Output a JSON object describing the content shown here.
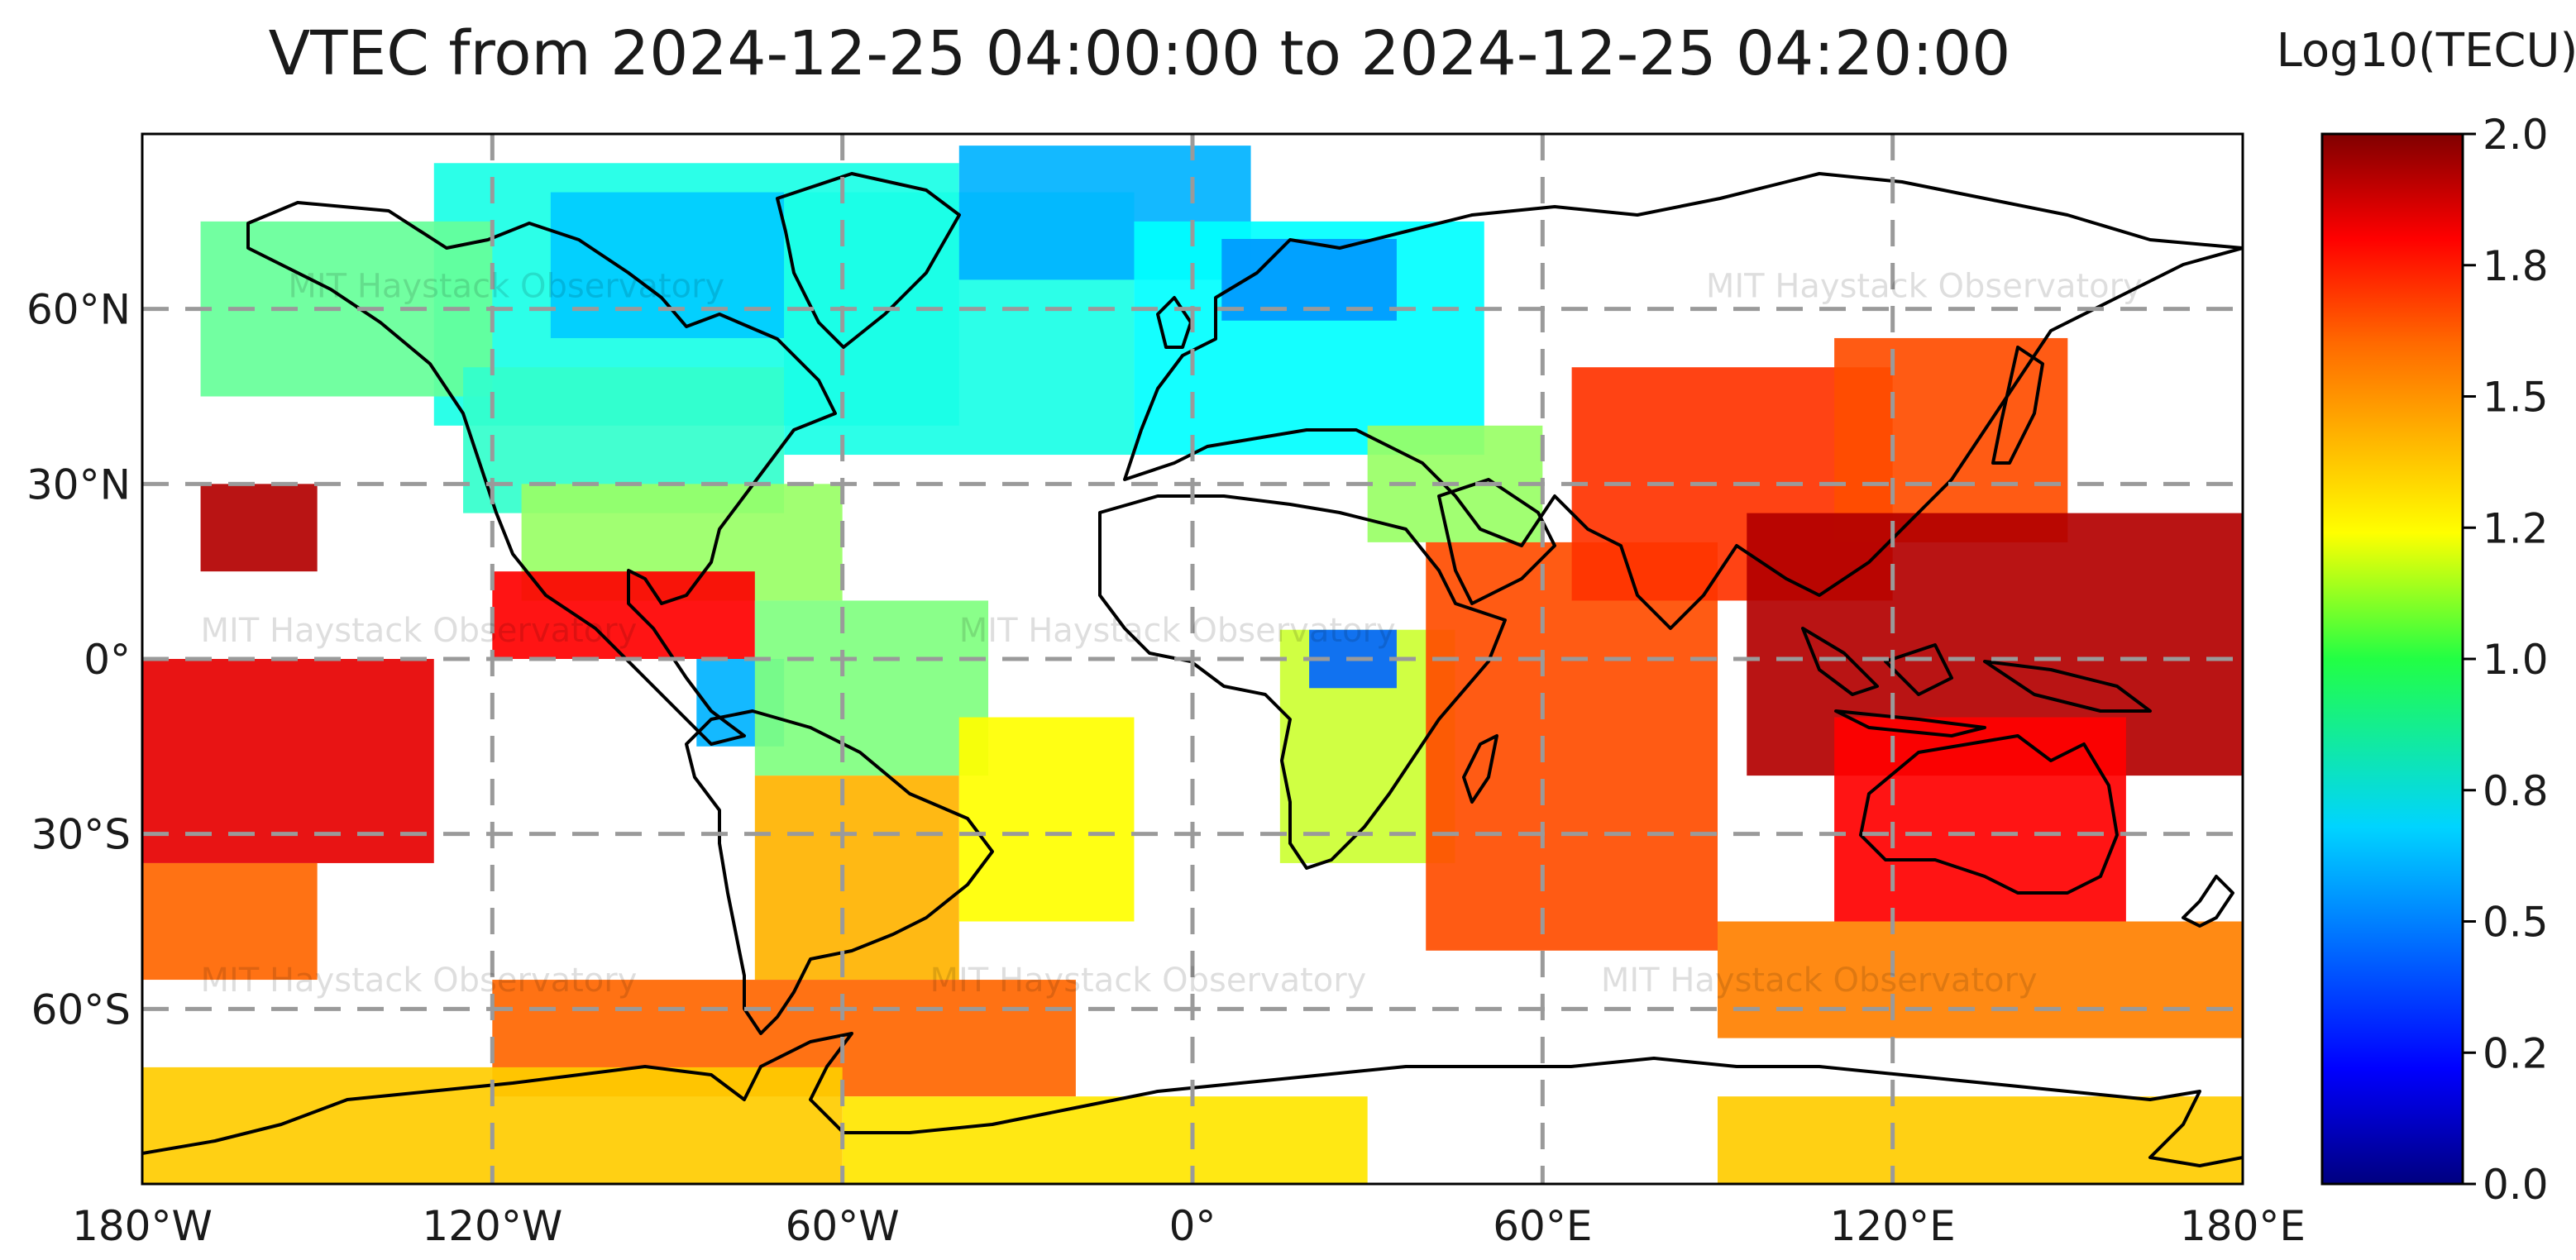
{
  "title": "VTEC from 2024-12-25 04:00:00 to 2024-12-25 04:20:00",
  "colorbar": {
    "label": "Log10(TECU)",
    "min": 0.0,
    "max": 2.0,
    "ticks": [
      {
        "value": 0.0,
        "label": "0.0"
      },
      {
        "value": 0.25,
        "label": "0.2"
      },
      {
        "value": 0.5,
        "label": "0.5"
      },
      {
        "value": 0.75,
        "label": "0.8"
      },
      {
        "value": 1.0,
        "label": "1.0"
      },
      {
        "value": 1.25,
        "label": "1.2"
      },
      {
        "value": 1.5,
        "label": "1.5"
      },
      {
        "value": 1.75,
        "label": "1.8"
      },
      {
        "value": 2.0,
        "label": "2.0"
      }
    ],
    "colormap": "jet",
    "colors": [
      "#000080",
      "#0000ff",
      "#0080ff",
      "#00ffff",
      "#80ff80",
      "#ffff00",
      "#ff8000",
      "#ff0000",
      "#800000"
    ]
  },
  "map": {
    "projection": "equirectangular",
    "lon_range": [
      -180,
      180
    ],
    "lat_range": [
      -90,
      90
    ],
    "gridlines": "dashed",
    "lon_ticks": [
      {
        "value": -180,
        "label": "180°W"
      },
      {
        "value": -120,
        "label": "120°W"
      },
      {
        "value": -60,
        "label": "60°W"
      },
      {
        "value": 0,
        "label": "0°"
      },
      {
        "value": 60,
        "label": "60°E"
      },
      {
        "value": 120,
        "label": "120°E"
      },
      {
        "value": 180,
        "label": "180°E"
      }
    ],
    "lat_ticks": [
      {
        "value": 60,
        "label": "60°N"
      },
      {
        "value": 30,
        "label": "30°N"
      },
      {
        "value": 0,
        "label": "0°"
      },
      {
        "value": -30,
        "label": "30°S"
      },
      {
        "value": -60,
        "label": "60°S"
      }
    ],
    "watermark": "MIT Haystack Observatory",
    "watermarks": [
      {
        "lon": -155,
        "lat": 62
      },
      {
        "lon": 88,
        "lat": 62
      },
      {
        "lon": -170,
        "lat": 3
      },
      {
        "lon": -40,
        "lat": 3
      },
      {
        "lon": -170,
        "lat": -57
      },
      {
        "lon": -45,
        "lat": -57
      },
      {
        "lon": 70,
        "lat": -57
      }
    ],
    "tec_regions": [
      {
        "name": "north-america-arctic",
        "lon": [
          -130,
          -40
        ],
        "lat": [
          40,
          85
        ],
        "value": 0.8
      },
      {
        "name": "canada-high-lat",
        "lon": [
          -110,
          -70
        ],
        "lat": [
          55,
          80
        ],
        "value": 0.65
      },
      {
        "name": "alaska-west-canada",
        "lon": [
          -170,
          -120
        ],
        "lat": [
          45,
          75
        ],
        "value": 0.95
      },
      {
        "name": "united-states",
        "lon": [
          -125,
          -70
        ],
        "lat": [
          25,
          50
        ],
        "value": 0.85
      },
      {
        "name": "north-atlantic",
        "lon": [
          -70,
          -10
        ],
        "lat": [
          35,
          80
        ],
        "value": 0.8
      },
      {
        "name": "greenland-sea",
        "lon": [
          -40,
          10
        ],
        "lat": [
          65,
          88
        ],
        "value": 0.6
      },
      {
        "name": "europe",
        "lon": [
          -10,
          50
        ],
        "lat": [
          35,
          75
        ],
        "value": 0.75
      },
      {
        "name": "scandinavia",
        "lon": [
          5,
          35
        ],
        "lat": [
          58,
          72
        ],
        "value": 0.55
      },
      {
        "name": "middle-east",
        "lon": [
          30,
          60
        ],
        "lat": [
          20,
          40
        ],
        "value": 1.05
      },
      {
        "name": "mexico-caribbean",
        "lon": [
          -115,
          -60
        ],
        "lat": [
          10,
          30
        ],
        "value": 1.05
      },
      {
        "name": "hawaii-patch",
        "lon": [
          -170,
          -150
        ],
        "lat": [
          15,
          30
        ],
        "value": 1.9
      },
      {
        "name": "east-pacific-equator",
        "lon": [
          -120,
          -75
        ],
        "lat": [
          0,
          15
        ],
        "value": 1.75
      },
      {
        "name": "andes-west",
        "lon": [
          -85,
          -70
        ],
        "lat": [
          -15,
          0
        ],
        "value": 0.6
      },
      {
        "name": "south-america-north",
        "lon": [
          -75,
          -35
        ],
        "lat": [
          -20,
          10
        ],
        "value": 1.0
      },
      {
        "name": "south-america-south",
        "lon": [
          -75,
          -40
        ],
        "lat": [
          -55,
          -20
        ],
        "value": 1.4
      },
      {
        "name": "south-atlantic",
        "lon": [
          -40,
          -10
        ],
        "lat": [
          -45,
          -10
        ],
        "value": 1.25
      },
      {
        "name": "west-pacific-south",
        "lon": [
          -180,
          -130
        ],
        "lat": [
          -35,
          0
        ],
        "value": 1.8
      },
      {
        "name": "south-pacific-mid",
        "lon": [
          -180,
          -150
        ],
        "lat": [
          -55,
          -35
        ],
        "value": 1.55
      },
      {
        "name": "central-africa",
        "lon": [
          15,
          45
        ],
        "lat": [
          -35,
          5
        ],
        "value": 1.15
      },
      {
        "name": "central-africa-lake-blob",
        "lon": [
          20,
          35
        ],
        "lat": [
          -5,
          5
        ],
        "value": 0.45
      },
      {
        "name": "indian-ocean",
        "lon": [
          40,
          90
        ],
        "lat": [
          -50,
          20
        ],
        "value": 1.6
      },
      {
        "name": "south-asia",
        "lon": [
          65,
          120
        ],
        "lat": [
          10,
          50
        ],
        "value": 1.65
      },
      {
        "name": "east-asia",
        "lon": [
          110,
          150
        ],
        "lat": [
          20,
          55
        ],
        "value": 1.6
      },
      {
        "name": "maritime-continent",
        "lon": [
          95,
          180
        ],
        "lat": [
          -20,
          25
        ],
        "value": 1.9
      },
      {
        "name": "australia",
        "lon": [
          110,
          160
        ],
        "lat": [
          -45,
          -10
        ],
        "value": 1.75
      },
      {
        "name": "southern-ocean-east",
        "lon": [
          90,
          180
        ],
        "lat": [
          -65,
          -45
        ],
        "value": 1.5
      },
      {
        "name": "south-america-antarctic-ring",
        "lon": [
          -120,
          -20
        ],
        "lat": [
          -75,
          -55
        ],
        "value": 1.55
      },
      {
        "name": "antarctica-west",
        "lon": [
          -180,
          -60
        ],
        "lat": [
          -90,
          -70
        ],
        "value": 1.35
      },
      {
        "name": "antarctica-east",
        "lon": [
          -60,
          30
        ],
        "lat": [
          -90,
          -75
        ],
        "value": 1.3
      },
      {
        "name": "antarctica-far-east",
        "lon": [
          90,
          180
        ],
        "lat": [
          -90,
          -75
        ],
        "value": 1.35
      }
    ]
  }
}
